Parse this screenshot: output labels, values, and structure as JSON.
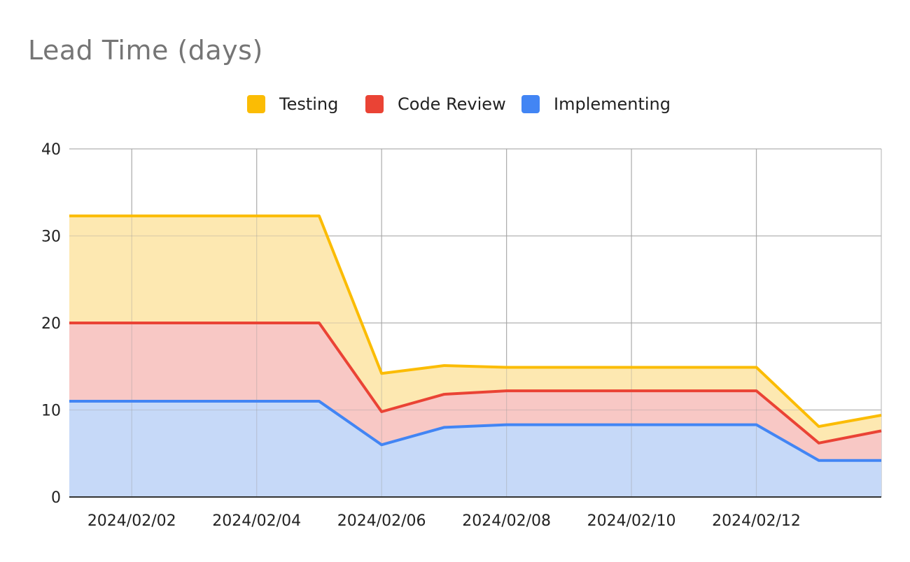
{
  "chart_data": {
    "type": "area",
    "stacked": true,
    "title": "Lead Time (days)",
    "xlabel": "",
    "ylabel": "",
    "ylim": [
      0,
      40
    ],
    "yticks": [
      "0",
      "10",
      "20",
      "30",
      "40"
    ],
    "xticks": [
      "2024/02/02",
      "2024/02/04",
      "2024/02/06",
      "2024/02/08",
      "2024/02/10",
      "2024/02/12"
    ],
    "x": [
      "2024/02/01",
      "2024/02/02",
      "2024/02/03",
      "2024/02/04",
      "2024/02/05",
      "2024/02/06",
      "2024/02/07",
      "2024/02/08",
      "2024/02/09",
      "2024/02/10",
      "2024/02/11",
      "2024/02/12",
      "2024/02/13",
      "2024/02/14"
    ],
    "grid": true,
    "legend_position": "top",
    "series": [
      {
        "name": "Implementing",
        "color": "#4285F4",
        "fill": "#C6D9F8",
        "values": [
          11.0,
          11.0,
          11.0,
          11.0,
          11.0,
          6.0,
          8.0,
          8.3,
          8.3,
          8.3,
          8.3,
          8.3,
          4.2,
          4.2
        ]
      },
      {
        "name": "Code Review",
        "color": "#EA4335",
        "fill": "#F8C8C5",
        "values": [
          9.0,
          9.0,
          9.0,
          9.0,
          9.0,
          3.8,
          3.8,
          3.9,
          3.9,
          3.9,
          3.9,
          3.9,
          2.0,
          3.4
        ]
      },
      {
        "name": "Testing",
        "color": "#FBBC04",
        "fill": "#FDE8B1",
        "values": [
          12.3,
          12.3,
          12.3,
          12.3,
          12.3,
          4.4,
          3.3,
          2.7,
          2.7,
          2.7,
          2.7,
          2.7,
          1.9,
          1.8
        ]
      }
    ]
  }
}
